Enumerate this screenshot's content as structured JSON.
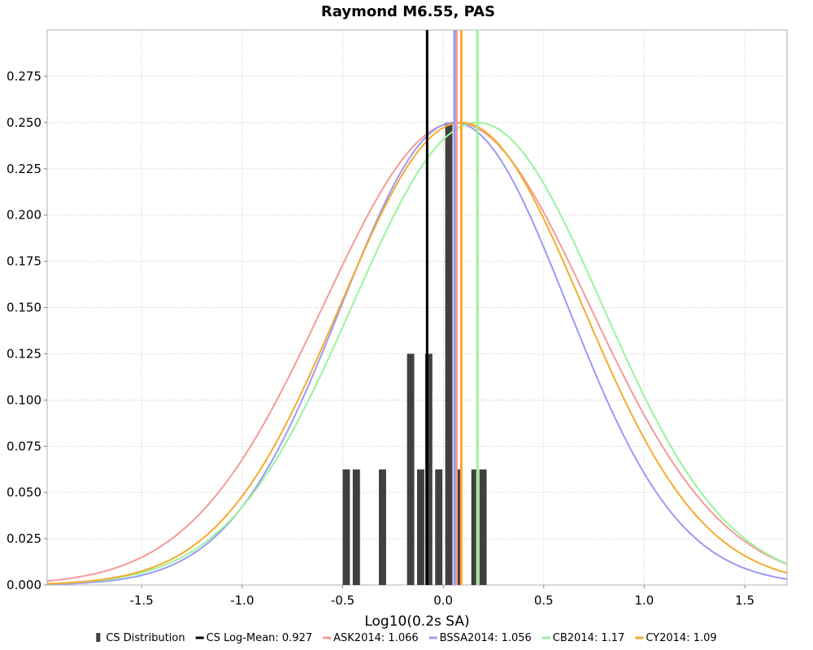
{
  "chart_data": {
    "type": "bar",
    "title": "Raymond M6.55, PAS",
    "xlabel": "Log10(0.2s SA)",
    "ylabel": "",
    "xlim": [
      -1.97,
      1.71
    ],
    "ylim": [
      0,
      0.3
    ],
    "x_ticks": [
      "-1.5",
      "-1.0",
      "-0.5",
      "0.0",
      "0.5",
      "1.0",
      "1.5"
    ],
    "y_ticks": [
      "0.000",
      "0.025",
      "0.050",
      "0.075",
      "0.100",
      "0.125",
      "0.150",
      "0.175",
      "0.200",
      "0.225",
      "0.250",
      "0.275"
    ],
    "grid": true,
    "legend_position": "bottom",
    "series": [
      {
        "name": "CS Distribution",
        "type": "bar",
        "color": "#404040",
        "bin_width": 0.04,
        "points": [
          {
            "x": -0.48,
            "y": 0.0625
          },
          {
            "x": -0.43,
            "y": 0.0625
          },
          {
            "x": -0.3,
            "y": 0.0625
          },
          {
            "x": -0.16,
            "y": 0.125
          },
          {
            "x": -0.11,
            "y": 0.0625
          },
          {
            "x": -0.07,
            "y": 0.125
          },
          {
            "x": -0.02,
            "y": 0.0625
          },
          {
            "x": 0.03,
            "y": 0.25
          },
          {
            "x": 0.07,
            "y": 0.0625
          },
          {
            "x": 0.16,
            "y": 0.0625
          },
          {
            "x": 0.2,
            "y": 0.0625
          }
        ]
      },
      {
        "name": "CS Log-Mean: 0.927",
        "type": "vline",
        "x": -0.08,
        "color": "#000000"
      },
      {
        "name": "ASK2014: 1.066",
        "type": "normal",
        "mean": 0.066,
        "std": 0.66,
        "peak": 0.25,
        "color": "#f49a9a"
      },
      {
        "name": "BSSA2014: 1.056",
        "type": "normal",
        "mean": 0.056,
        "std": 0.56,
        "peak": 0.25,
        "color": "#9a9af4"
      },
      {
        "name": "CB2014: 1.17",
        "type": "normal",
        "mean": 0.17,
        "std": 0.62,
        "peak": 0.25,
        "color": "#99f499"
      },
      {
        "name": "CY2014: 1.09",
        "type": "normal",
        "mean": 0.09,
        "std": 0.6,
        "peak": 0.25,
        "color": "#f4ac2c"
      }
    ]
  }
}
